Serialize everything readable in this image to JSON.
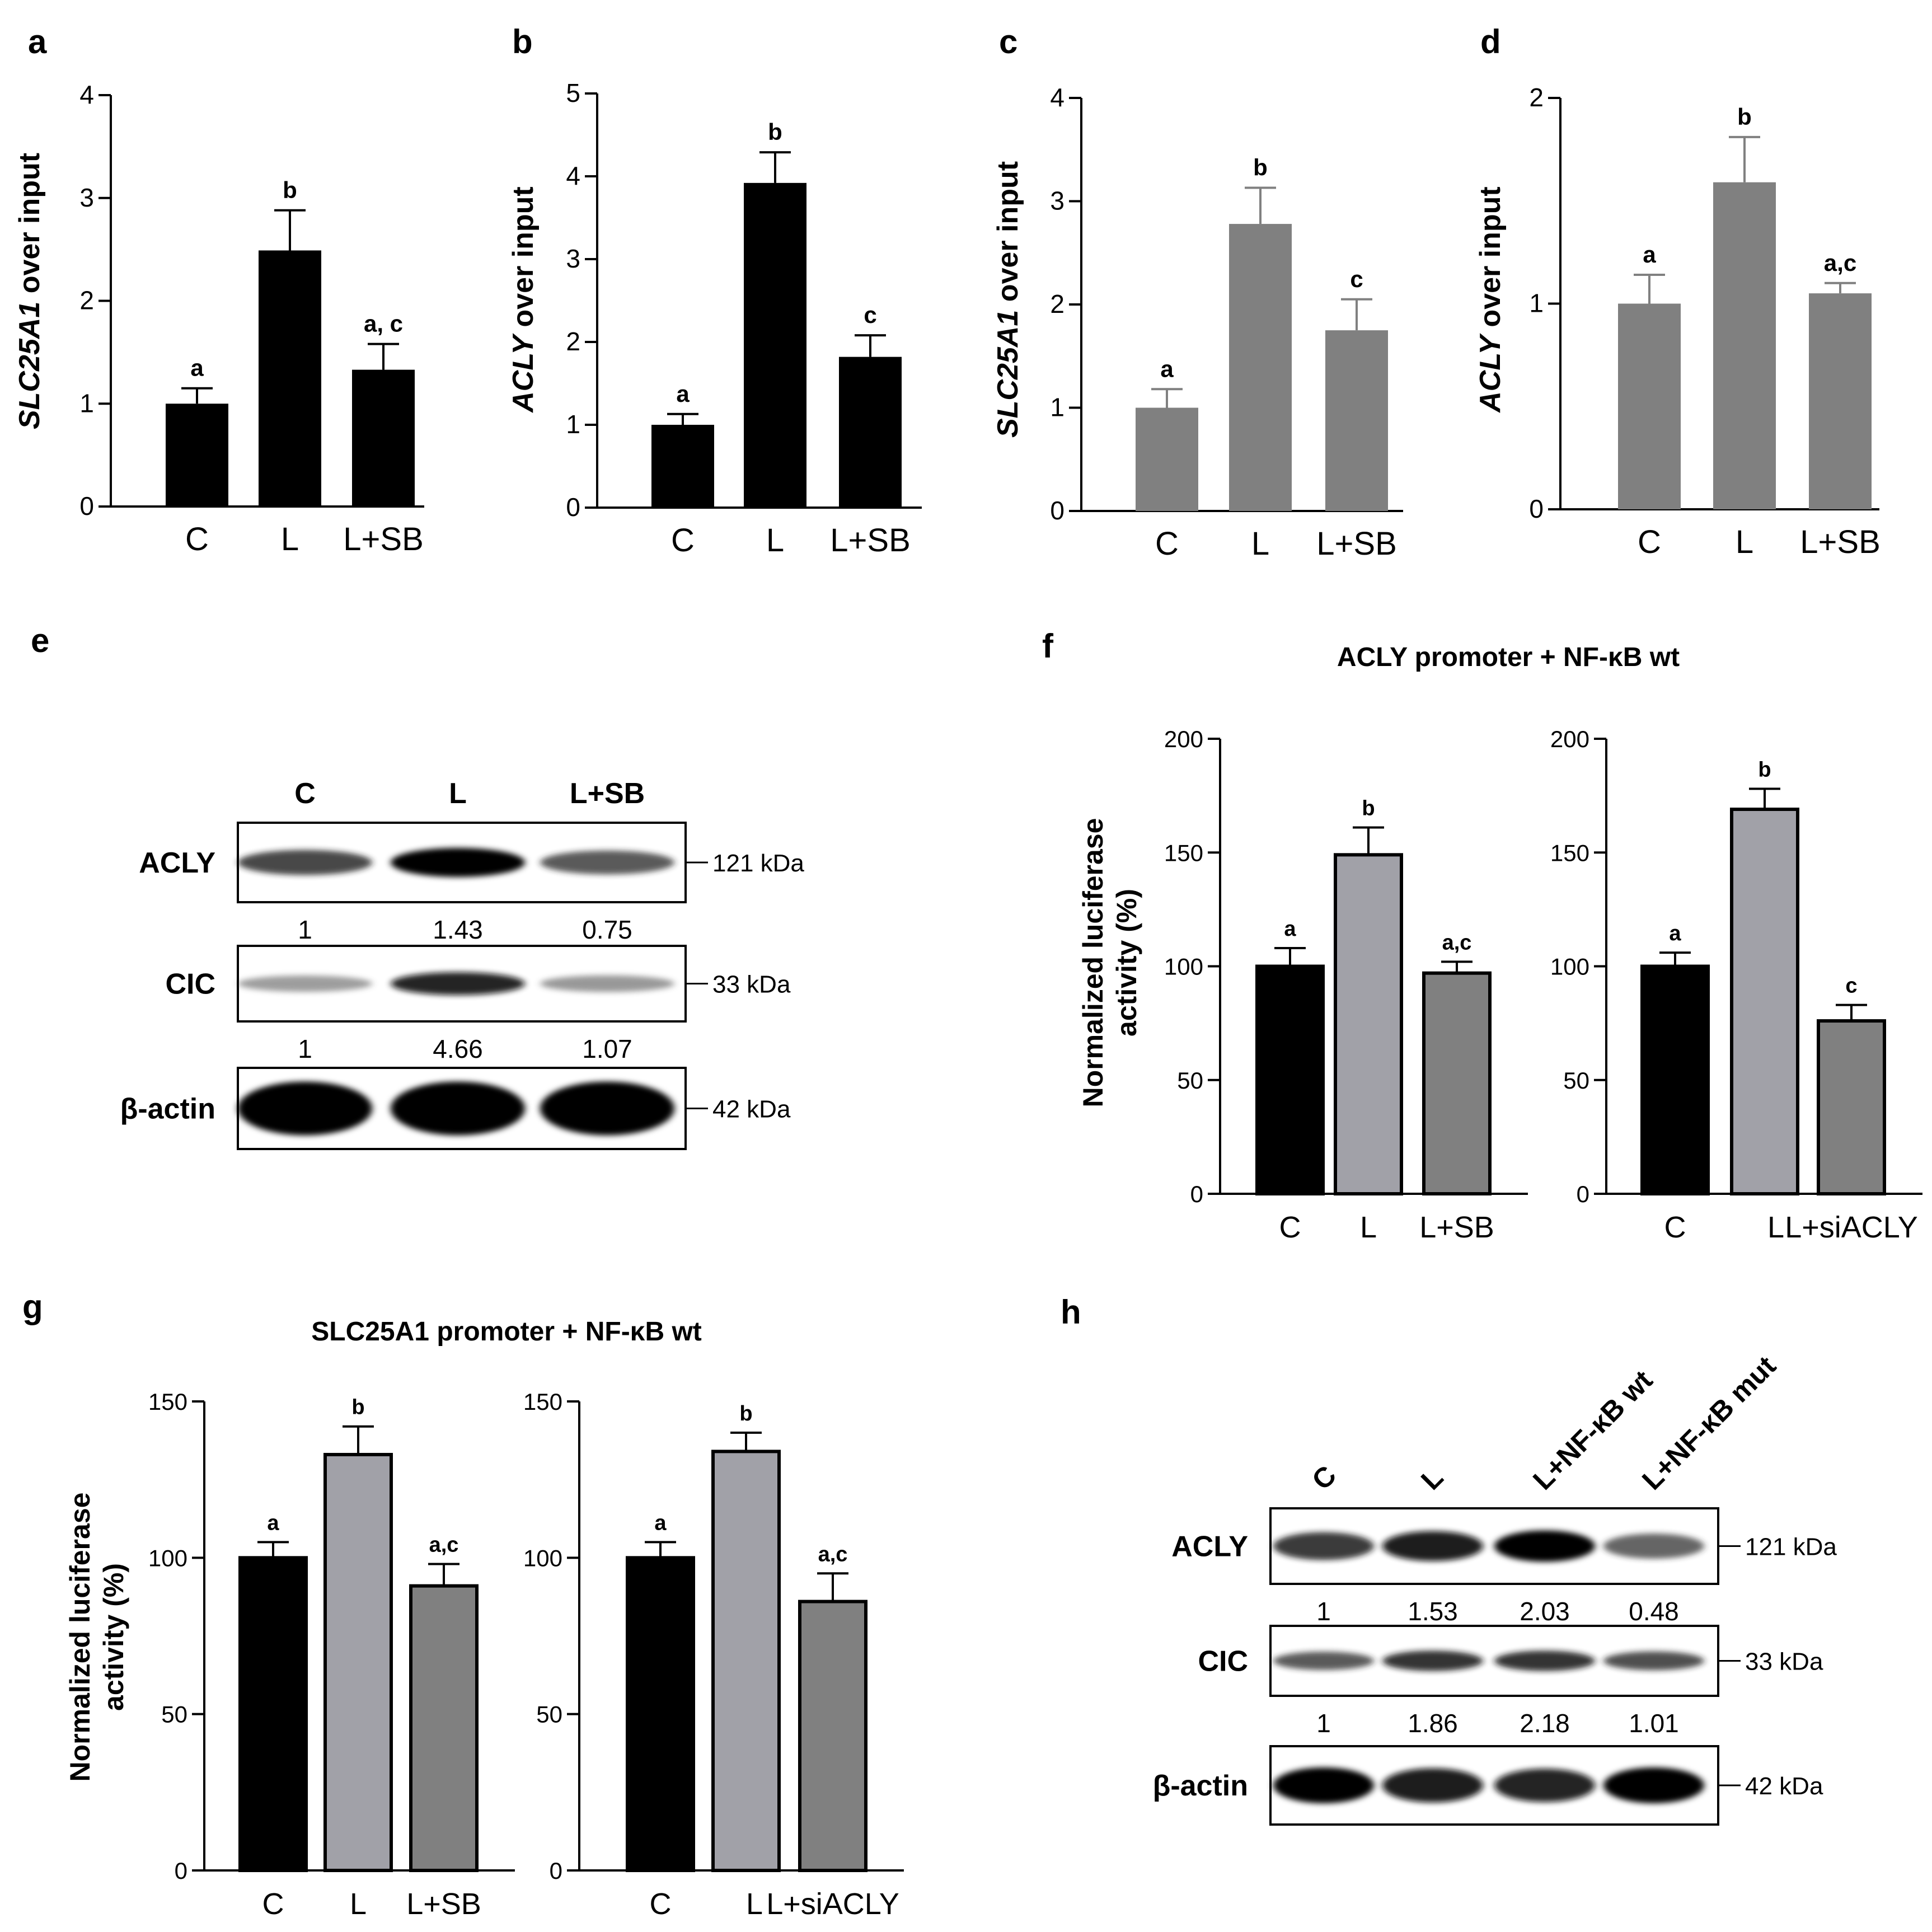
{
  "figure": {
    "colors": {
      "black": "#000000",
      "dark_gray": "#808080",
      "light_gray": "#a1a1a8",
      "blot_bg": "#ffffff"
    }
  },
  "chart_data": [
    {
      "panel": "a",
      "type": "bar",
      "ylabel_gene": "SLC25A1",
      "ylabel_rest": " over input",
      "categories": [
        "C",
        "L",
        "L+SB"
      ],
      "values": [
        1.0,
        2.49,
        1.33
      ],
      "errors": [
        0.15,
        0.39,
        0.25
      ],
      "letters": [
        "a",
        "b",
        "a, c"
      ],
      "ylim": [
        0,
        4
      ],
      "yticks": [
        "0",
        "1",
        "2",
        "3",
        "4"
      ],
      "color": "black"
    },
    {
      "panel": "b",
      "type": "bar",
      "ylabel_gene": "ACLY",
      "ylabel_rest": " over input",
      "categories": [
        "C",
        "L",
        "L+SB"
      ],
      "values": [
        1.0,
        3.92,
        1.82
      ],
      "errors": [
        0.13,
        0.37,
        0.26
      ],
      "letters": [
        "a",
        "b",
        "c"
      ],
      "ylim": [
        0,
        5
      ],
      "yticks": [
        "0",
        "1",
        "2",
        "3",
        "4",
        "5"
      ],
      "color": "black"
    },
    {
      "panel": "c",
      "type": "bar",
      "ylabel_gene": "SLC25A1",
      "ylabel_rest": " over input",
      "categories": [
        "C",
        "L",
        "L+SB"
      ],
      "values": [
        1.0,
        2.78,
        1.75
      ],
      "errors": [
        0.18,
        0.35,
        0.3
      ],
      "letters": [
        "a",
        "b",
        "c"
      ],
      "ylim": [
        0,
        4
      ],
      "yticks": [
        "0",
        "1",
        "2",
        "3",
        "4"
      ],
      "color": "dark_gray"
    },
    {
      "panel": "d",
      "type": "bar",
      "ylabel_gene": "ACLY",
      "ylabel_rest": " over input",
      "categories": [
        "C",
        "L",
        "L+SB"
      ],
      "values": [
        1.0,
        1.59,
        1.05
      ],
      "errors": [
        0.14,
        0.22,
        0.05
      ],
      "letters": [
        "a",
        "b",
        "a,c"
      ],
      "ylim": [
        0,
        2
      ],
      "yticks": [
        "0",
        "1",
        "2"
      ],
      "color": "dark_gray"
    },
    {
      "panel": "f1",
      "type": "bar",
      "ylabel": "Normalized luciferase activity (%)",
      "categories": [
        "C",
        "L",
        "L+SB"
      ],
      "values": [
        100,
        149,
        97
      ],
      "errors": [
        8,
        12,
        5
      ],
      "letters": [
        "a",
        "b",
        "a,c"
      ],
      "ylim": [
        0,
        200
      ],
      "yticks": [
        "0",
        "50",
        "100",
        "150",
        "200"
      ],
      "colors": [
        "black",
        "light_gray",
        "dark_gray"
      ]
    },
    {
      "panel": "f2",
      "type": "bar",
      "ylabel": "",
      "categories": [
        "C",
        "L",
        "L+siACLY"
      ],
      "values": [
        100,
        169,
        76
      ],
      "errors": [
        6,
        9,
        7
      ],
      "letters": [
        "a",
        "b",
        "c"
      ],
      "ylim": [
        0,
        200
      ],
      "yticks": [
        "0",
        "50",
        "100",
        "150",
        "200"
      ],
      "colors": [
        "black",
        "light_gray",
        "dark_gray"
      ]
    },
    {
      "panel": "g1",
      "type": "bar",
      "ylabel": "Normalized luciferase activity (%)",
      "categories": [
        "C",
        "L",
        "L+SB"
      ],
      "values": [
        100,
        133,
        91
      ],
      "errors": [
        5,
        9,
        7
      ],
      "letters": [
        "a",
        "b",
        "a,c"
      ],
      "ylim": [
        0,
        150
      ],
      "yticks": [
        "0",
        "50",
        "100",
        "150"
      ],
      "colors": [
        "black",
        "light_gray",
        "dark_gray"
      ]
    },
    {
      "panel": "g2",
      "type": "bar",
      "ylabel": "",
      "categories": [
        "C",
        "L",
        "L+siACLY"
      ],
      "values": [
        100,
        134,
        86
      ],
      "errors": [
        5,
        6,
        9
      ],
      "letters": [
        "a",
        "b",
        "a,c"
      ],
      "ylim": [
        0,
        150
      ],
      "yticks": [
        "0",
        "50",
        "100",
        "150"
      ],
      "colors": [
        "black",
        "light_gray",
        "dark_gray"
      ]
    }
  ],
  "panel_labels": {
    "a": "a",
    "b": "b",
    "c": "c",
    "d": "d",
    "e": "e",
    "f": "f",
    "g": "g",
    "h": "h"
  },
  "titles": {
    "f": "ACLY promoter + NF-κB wt",
    "g": "SLC25A1 promoter + NF-κB wt"
  },
  "blot_e": {
    "lanes": [
      "C",
      "L",
      "L+SB"
    ],
    "rows": [
      {
        "label": "ACLY",
        "kda": "121 kDa",
        "quant": [
          "1",
          "1.43",
          "0.75"
        ],
        "intensity": [
          0.7,
          1.0,
          0.6
        ]
      },
      {
        "label": "CIC",
        "kda": "33 kDa",
        "quant": [
          "1",
          "4.66",
          "1.07"
        ],
        "intensity": [
          0.25,
          0.85,
          0.28
        ]
      },
      {
        "label": "β-actin",
        "kda": "42 kDa",
        "quant": [],
        "intensity": [
          1.0,
          1.0,
          1.0
        ]
      }
    ]
  },
  "blot_h": {
    "lanes": [
      "C",
      "L",
      "L+NF-κB wt",
      "L+NF-κB mut"
    ],
    "rows": [
      {
        "label": "ACLY",
        "kda": "121 kDa",
        "quant": [
          "1",
          "1.53",
          "2.03",
          "0.48"
        ],
        "intensity": [
          0.75,
          0.9,
          1.0,
          0.55
        ]
      },
      {
        "label": "CIC",
        "kda": "33 kDa",
        "quant": [
          "1",
          "1.86",
          "2.18",
          "1.01"
        ],
        "intensity": [
          0.6,
          0.8,
          0.8,
          0.65
        ]
      },
      {
        "label": "β-actin",
        "kda": "42 kDa",
        "quant": [],
        "intensity": [
          1.0,
          0.9,
          0.85,
          1.0
        ]
      }
    ]
  }
}
